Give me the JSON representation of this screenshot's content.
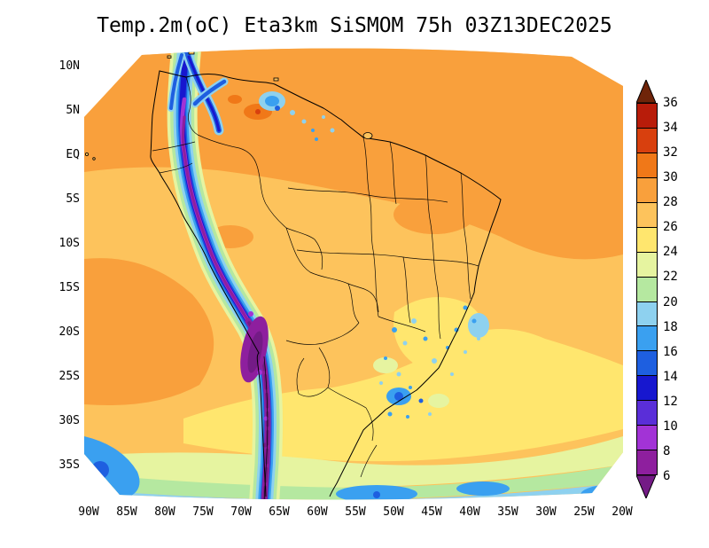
{
  "title": "Temp.2m(oC) Eta3km SiSMOM 75h 03Z13DEC2025",
  "title_parts": {
    "variable": "Temp.2m(oC)",
    "model": "Eta3km",
    "system": "SiSMOM",
    "forecast_hour": "75h",
    "valid_time": "03Z13DEC2025"
  },
  "axes": {
    "lat_labels": [
      "10N",
      "5N",
      "EQ",
      "5S",
      "10S",
      "15S",
      "20S",
      "25S",
      "30S",
      "35S"
    ],
    "lon_labels": [
      "90W",
      "85W",
      "80W",
      "75W",
      "70W",
      "65W",
      "60W",
      "55W",
      "50W",
      "45W",
      "40W",
      "35W",
      "30W",
      "25W",
      "20W"
    ]
  },
  "colorbar": {
    "unit": "oC",
    "tick_labels": [
      "36",
      "34",
      "32",
      "30",
      "28",
      "26",
      "24",
      "22",
      "20",
      "18",
      "16",
      "14",
      "12",
      "10",
      "8",
      "6"
    ],
    "segments": [
      "#b81c0a",
      "#d8400e",
      "#f07818",
      "#f9a03c",
      "#fdc35c",
      "#ffe66e",
      "#e6f4a0",
      "#b5e8a0",
      "#8ed1ef",
      "#3aa0f0",
      "#1e5fe0",
      "#1717cf",
      "#5a2ed8",
      "#a233d6",
      "#8e1f9e"
    ]
  },
  "colors": {
    "base": "#fdc35c",
    "warm": "#f9a03c",
    "hot": "#f07818",
    "hotter": "#d8400e",
    "mild": "#ffe66e",
    "cool1": "#e6f4a0",
    "cool2": "#b5e8a0",
    "cool3": "#8ed1ef",
    "cool4": "#3aa0f0",
    "cold1": "#1e5fe0",
    "cold2": "#1717cf",
    "violet": "#5a2ed8",
    "magenta": "#a233d6",
    "purple": "#8e1f9e",
    "deep": "#741b86",
    "cb_above": "#6f2409",
    "cb_below": "#741b86",
    "border": "#000000",
    "page_bg": "#ffffff",
    "text": "#000000"
  }
}
